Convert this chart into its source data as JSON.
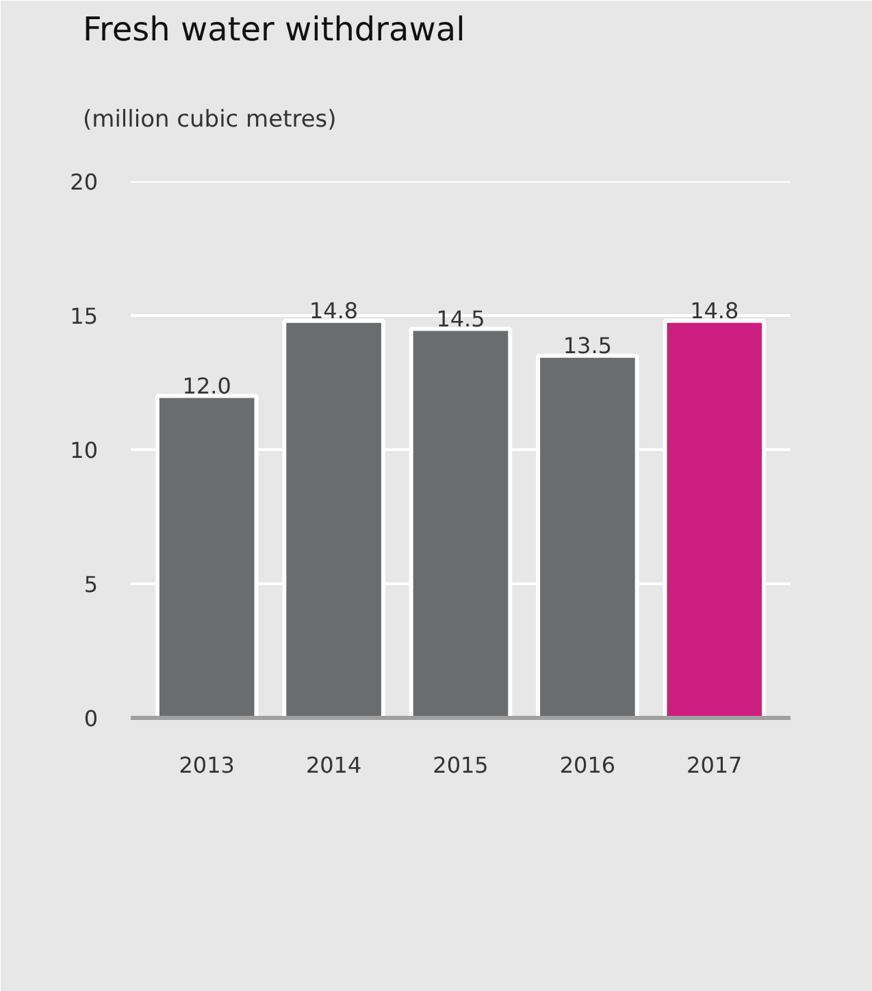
{
  "chart_data": {
    "type": "bar",
    "title": "Fresh water withdrawal",
    "subtitle": "(million cubic metres)",
    "categories": [
      "2013",
      "2014",
      "2015",
      "2016",
      "2017"
    ],
    "values": [
      12.0,
      14.8,
      14.5,
      13.5,
      14.8
    ],
    "colors": [
      "#6b6c6d",
      "#6b6c6d",
      "#6b6c6d",
      "#6b6c6d",
      "#cc1f7f"
    ],
    "ylim": [
      0,
      20
    ],
    "yticks": [
      0,
      5,
      10,
      15,
      20
    ],
    "grid": "y",
    "value_labels": [
      "12.0",
      "14.8",
      "14.5",
      "13.5",
      "14.8"
    ]
  }
}
